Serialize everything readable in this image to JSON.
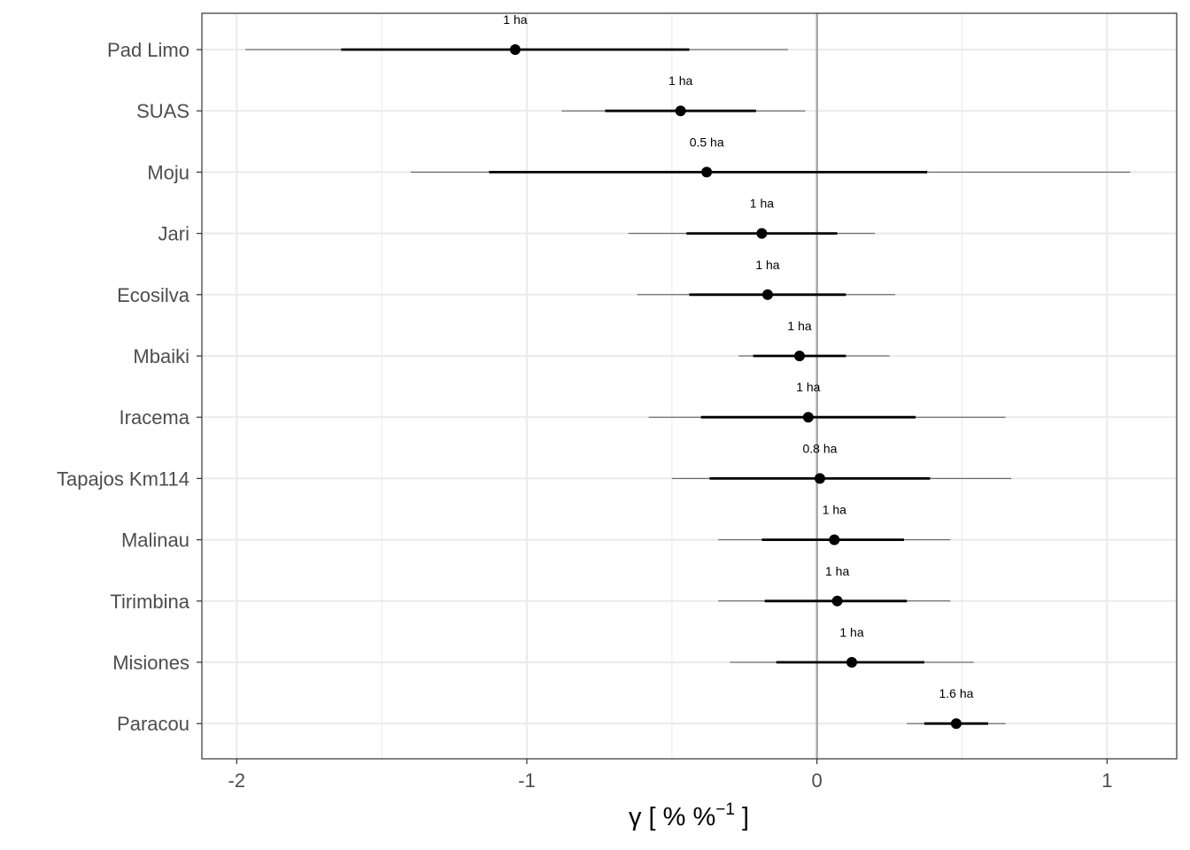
{
  "chart_data": {
    "type": "forest",
    "xlabel": "γ [ % %",
    "xlabel_sup": "−1",
    "xlabel_end": " ]",
    "xlim": [
      -2.12,
      1.24
    ],
    "xticks": [
      -2,
      -1,
      0,
      1
    ],
    "xtick_labels": [
      "-2",
      "-1",
      "0",
      "1"
    ],
    "reference_line": 0,
    "grid": true,
    "points": [
      {
        "site": "Pad Limo",
        "estimate": -1.04,
        "inner_low": -1.64,
        "inner_high": -0.44,
        "outer_low": -1.97,
        "outer_high": -0.1,
        "annotation": "1 ha"
      },
      {
        "site": "SUAS",
        "estimate": -0.47,
        "inner_low": -0.73,
        "inner_high": -0.21,
        "outer_low": -0.88,
        "outer_high": -0.04,
        "annotation": "1 ha"
      },
      {
        "site": "Moju",
        "estimate": -0.38,
        "inner_low": -1.13,
        "inner_high": 0.38,
        "outer_low": -1.4,
        "outer_high": 1.08,
        "annotation": "0.5 ha"
      },
      {
        "site": "Jari",
        "estimate": -0.19,
        "inner_low": -0.45,
        "inner_high": 0.07,
        "outer_low": -0.65,
        "outer_high": 0.2,
        "annotation": "1 ha"
      },
      {
        "site": "Ecosilva",
        "estimate": -0.17,
        "inner_low": -0.44,
        "inner_high": 0.1,
        "outer_low": -0.62,
        "outer_high": 0.27,
        "annotation": "1 ha"
      },
      {
        "site": "Mbaiki",
        "estimate": -0.06,
        "inner_low": -0.22,
        "inner_high": 0.1,
        "outer_low": -0.27,
        "outer_high": 0.25,
        "annotation": "1 ha"
      },
      {
        "site": "Iracema",
        "estimate": -0.03,
        "inner_low": -0.4,
        "inner_high": 0.34,
        "outer_low": -0.58,
        "outer_high": 0.65,
        "annotation": "1 ha"
      },
      {
        "site": "Tapajos Km114",
        "estimate": 0.01,
        "inner_low": -0.37,
        "inner_high": 0.39,
        "outer_low": -0.5,
        "outer_high": 0.67,
        "annotation": "0.8 ha"
      },
      {
        "site": "Malinau",
        "estimate": 0.06,
        "inner_low": -0.19,
        "inner_high": 0.3,
        "outer_low": -0.34,
        "outer_high": 0.46,
        "annotation": "1 ha"
      },
      {
        "site": "Tirimbina",
        "estimate": 0.07,
        "inner_low": -0.18,
        "inner_high": 0.31,
        "outer_low": -0.34,
        "outer_high": 0.46,
        "annotation": "1 ha"
      },
      {
        "site": "Misiones",
        "estimate": 0.12,
        "inner_low": -0.14,
        "inner_high": 0.37,
        "outer_low": -0.3,
        "outer_high": 0.54,
        "annotation": "1 ha"
      },
      {
        "site": "Paracou",
        "estimate": 0.48,
        "inner_low": 0.37,
        "inner_high": 0.59,
        "outer_low": 0.31,
        "outer_high": 0.65,
        "annotation": "1.6 ha"
      }
    ]
  }
}
